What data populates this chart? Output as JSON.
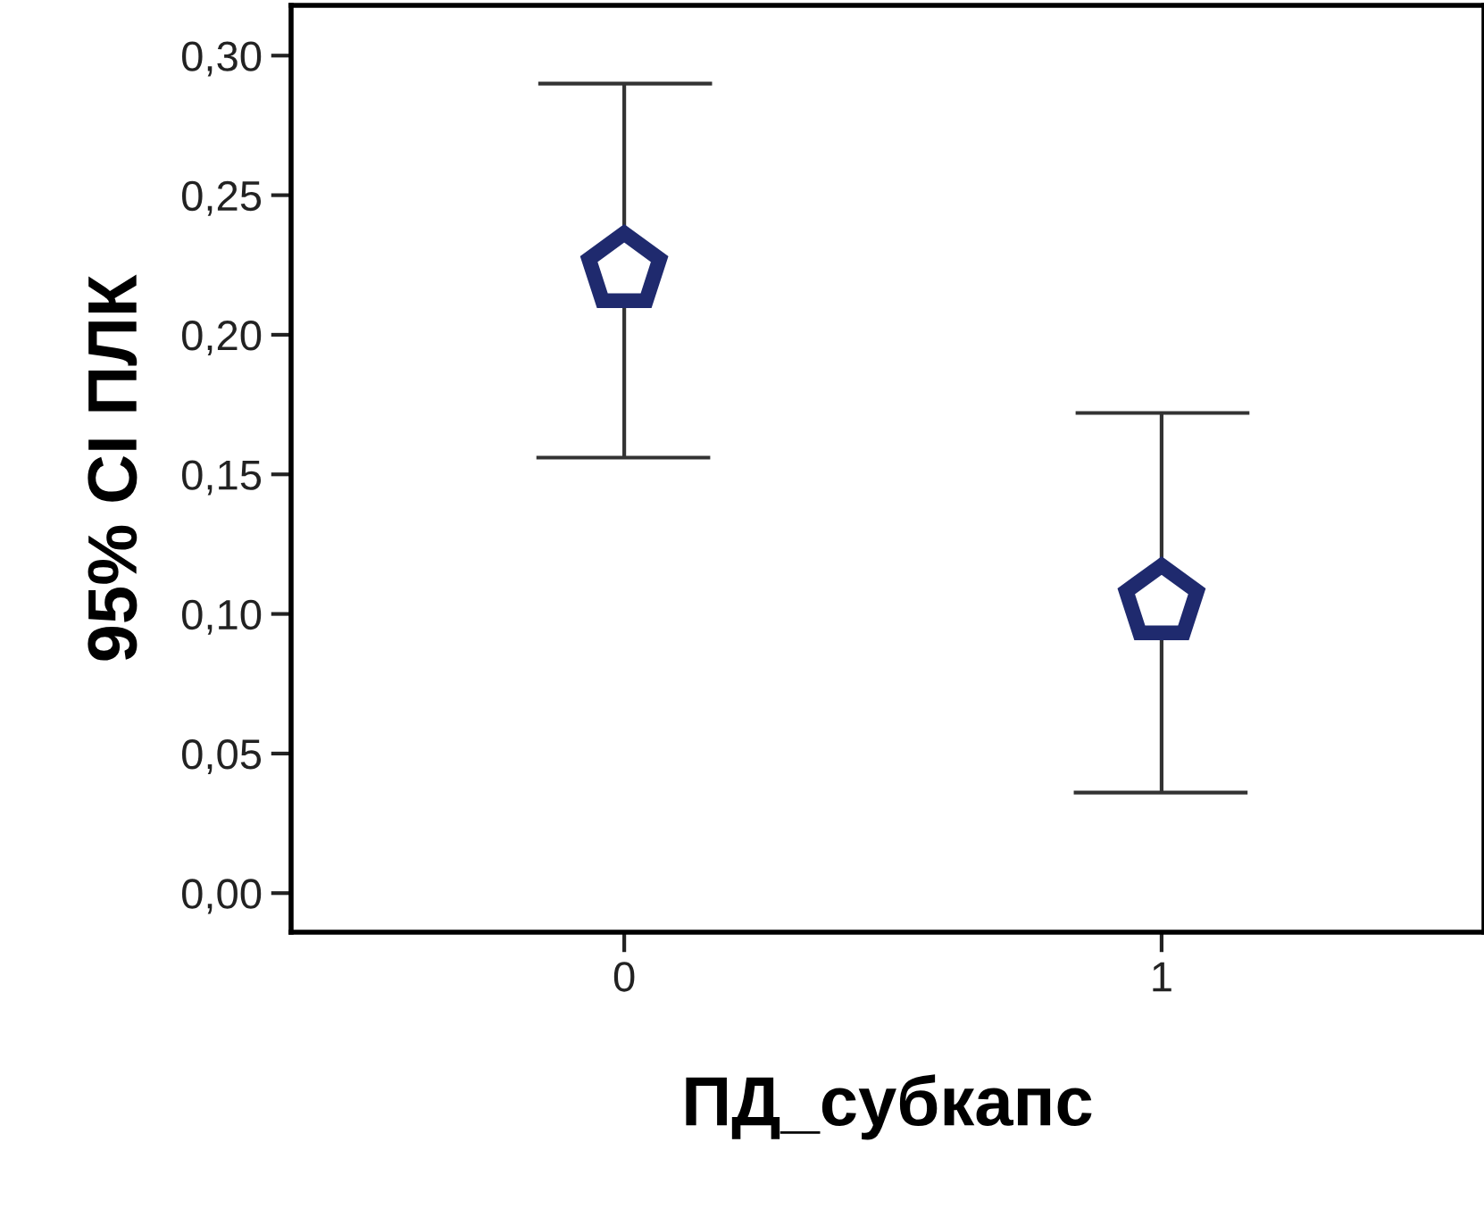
{
  "chart_data": {
    "type": "scatter",
    "xlabel": "ПД_субкапс",
    "ylabel": "95% CI ПЛК",
    "categories": [
      "0",
      "1"
    ],
    "color": "#1f2a6e",
    "values": [
      0.223,
      0.104
    ],
    "errors": [
      [
        0.156,
        0.29
      ],
      [
        0.036,
        0.172
      ]
    ],
    "ylim": [
      -0.014,
      0.318
    ],
    "yticks": [
      {
        "value": 0,
        "label": "0,00"
      },
      {
        "value": 0.05,
        "label": "0,05"
      },
      {
        "value": 0.1,
        "label": "0,10"
      },
      {
        "value": 0.15,
        "label": "0,15"
      },
      {
        "value": 0.2,
        "label": "0,20"
      },
      {
        "value": 0.25,
        "label": "0,25"
      },
      {
        "value": 0.3,
        "label": "0,30"
      }
    ],
    "grid": false,
    "legend": false
  }
}
